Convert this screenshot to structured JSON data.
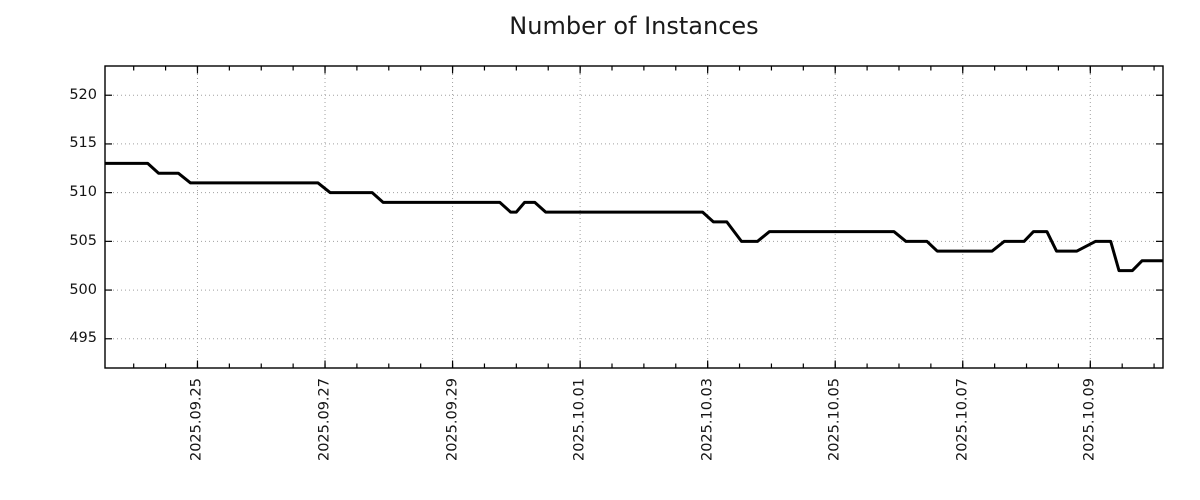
{
  "page": {
    "background_color": "#ffffff"
  },
  "chart_data": {
    "type": "line",
    "title": "Number of Instances",
    "line_color": "#000000",
    "grid": {
      "show": true,
      "style": "dotted",
      "color": "#a0a0a0"
    },
    "legend": {
      "show": false
    },
    "x_axis": {
      "unit": "days relative to 2025.09.25 00:00",
      "range": [
        -1.45,
        15.14
      ],
      "minor_tick_step": 0.5,
      "tick_label_rotation_deg": -90,
      "ticks": [
        {
          "pos": 0,
          "label": "2025.09.25"
        },
        {
          "pos": 2,
          "label": "2025.09.27"
        },
        {
          "pos": 4,
          "label": "2025.09.29"
        },
        {
          "pos": 6,
          "label": "2025.10.01"
        },
        {
          "pos": 8,
          "label": "2025.10.03"
        },
        {
          "pos": 10,
          "label": "2025.10.05"
        },
        {
          "pos": 12,
          "label": "2025.10.07"
        },
        {
          "pos": 14,
          "label": "2025.10.09"
        }
      ]
    },
    "y_axis": {
      "range": [
        492,
        523
      ],
      "ticks": [
        {
          "pos": 495,
          "label": "495"
        },
        {
          "pos": 500,
          "label": "500"
        },
        {
          "pos": 505,
          "label": "505"
        },
        {
          "pos": 510,
          "label": "510"
        },
        {
          "pos": 515,
          "label": "515"
        },
        {
          "pos": 520,
          "label": "520"
        }
      ]
    },
    "series": [
      {
        "name": "instances",
        "color": "#000000",
        "points": [
          [
            -1.45,
            513
          ],
          [
            -0.78,
            513
          ],
          [
            -0.61,
            512
          ],
          [
            -0.3,
            512
          ],
          [
            -0.11,
            511
          ],
          [
            1.89,
            511
          ],
          [
            2.08,
            510
          ],
          [
            2.74,
            510
          ],
          [
            2.91,
            509
          ],
          [
            4.74,
            509
          ],
          [
            4.91,
            508
          ],
          [
            5.0,
            508
          ],
          [
            5.13,
            509
          ],
          [
            5.29,
            509
          ],
          [
            5.46,
            508
          ],
          [
            7.92,
            508
          ],
          [
            8.09,
            507
          ],
          [
            8.3,
            507
          ],
          [
            8.53,
            505
          ],
          [
            8.78,
            505
          ],
          [
            8.97,
            506
          ],
          [
            10.92,
            506
          ],
          [
            11.11,
            505
          ],
          [
            11.44,
            505
          ],
          [
            11.6,
            504
          ],
          [
            12.46,
            504
          ],
          [
            12.65,
            505
          ],
          [
            12.96,
            505
          ],
          [
            13.11,
            506
          ],
          [
            13.32,
            506
          ],
          [
            13.47,
            504
          ],
          [
            13.79,
            504
          ],
          [
            14.08,
            505
          ],
          [
            14.32,
            505
          ],
          [
            14.45,
            502
          ],
          [
            14.66,
            502
          ],
          [
            14.81,
            503
          ],
          [
            15.14,
            503
          ]
        ]
      }
    ]
  }
}
